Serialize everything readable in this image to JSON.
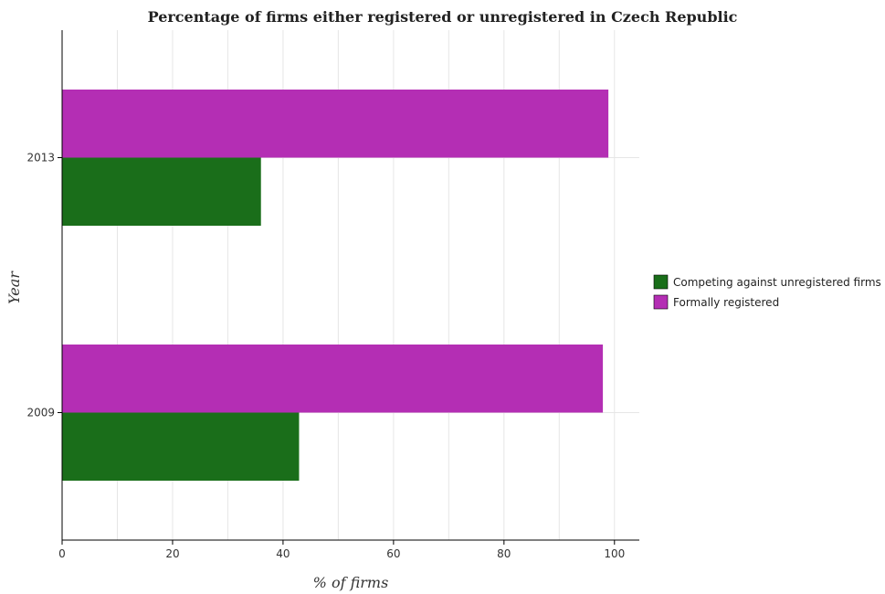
{
  "chart_data": {
    "type": "bar",
    "orientation": "horizontal",
    "title": "Percentage of firms either registered or unregistered in Czech Republic",
    "xlabel": "% of firms",
    "ylabel": "Year",
    "categories": [
      "2009",
      "2013"
    ],
    "series": [
      {
        "name": "Competing against unregistered firms",
        "color": "#1a6e1a",
        "values": [
          42.9,
          36.0
        ]
      },
      {
        "name": "Formally registered",
        "color": "#b42eb4",
        "values": [
          97.9,
          98.9
        ]
      }
    ],
    "xlim": [
      0,
      104.5
    ],
    "xticks": [
      0,
      20,
      40,
      60,
      80,
      100
    ],
    "grid": true,
    "legend_position": "right"
  }
}
